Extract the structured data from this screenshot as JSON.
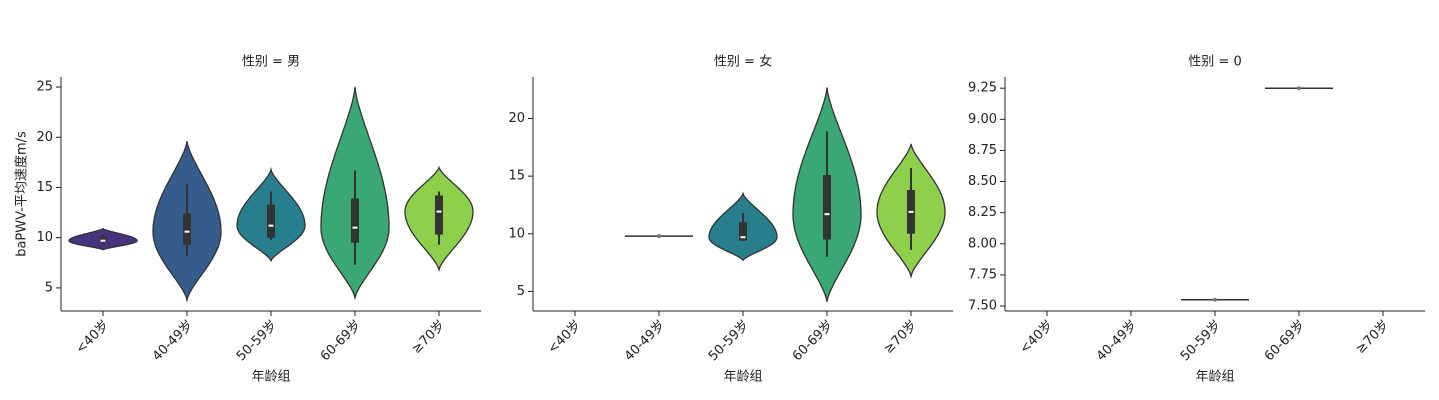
{
  "chart_data": [
    {
      "type": "violin",
      "title": "性别 = 男",
      "x_label": "年龄组",
      "y_label": "baPWV-平均速度m/s",
      "categories": [
        "<40岁",
        "40-49岁",
        "50-59岁",
        "60-69岁",
        "≥70岁"
      ],
      "colors": [
        "#46327e",
        "#365c8d",
        "#277f8e",
        "#3aa874",
        "#8ecf4c"
      ],
      "ylim": [
        2.7,
        26
      ],
      "yticks": [
        5,
        10,
        15,
        20,
        25
      ],
      "stats": [
        {
          "min": 8.8,
          "q1": 9.6,
          "median": 9.7,
          "q3": 10.1,
          "max": 10.9,
          "lo": 9.4,
          "hi": 10.3
        },
        {
          "min": 3.8,
          "q1": 9.3,
          "median": 10.6,
          "q3": 12.4,
          "max": 19.6,
          "lo": 8.2,
          "hi": 15.3
        },
        {
          "min": 7.7,
          "q1": 10.0,
          "median": 11.2,
          "q3": 13.3,
          "max": 16.8,
          "lo": 9.8,
          "hi": 14.6
        },
        {
          "min": 4.0,
          "q1": 9.5,
          "median": 11.0,
          "q3": 13.9,
          "max": 25.0,
          "lo": 7.3,
          "hi": 16.7
        },
        {
          "min": 6.8,
          "q1": 10.3,
          "median": 12.6,
          "q3": 14.2,
          "max": 17.0,
          "lo": 9.3,
          "hi": 14.6
        }
      ]
    },
    {
      "type": "violin",
      "title": "性别 = 女",
      "x_label": "年龄组",
      "categories": [
        "<40岁",
        "40-49岁",
        "50-59岁",
        "60-69岁",
        "≥70岁"
      ],
      "colors": [
        "#46327e",
        "#365c8d",
        "#277f8e",
        "#3aa874",
        "#8ecf4c"
      ],
      "ylim": [
        3.3,
        23.6
      ],
      "yticks": [
        5,
        10,
        15,
        20
      ],
      "stats": [
        null,
        {
          "value": 9.8
        },
        {
          "min": 7.7,
          "q1": 9.4,
          "median": 9.7,
          "q3": 11.0,
          "max": 13.5,
          "lo": 9.4,
          "hi": 11.8
        },
        {
          "min": 4.1,
          "q1": 9.5,
          "median": 11.7,
          "q3": 15.1,
          "max": 22.7,
          "lo": 8.0,
          "hi": 18.9
        },
        {
          "min": 6.3,
          "q1": 10.0,
          "median": 11.9,
          "q3": 13.8,
          "max": 17.8,
          "lo": 8.6,
          "hi": 15.7
        }
      ]
    },
    {
      "type": "violin",
      "title": "性别 = 0",
      "x_label": "年龄组",
      "categories": [
        "<40岁",
        "40-49岁",
        "50-59岁",
        "60-69岁",
        "≥70岁"
      ],
      "colors": [
        "#46327e",
        "#365c8d",
        "#277f8e",
        "#3aa874",
        "#8ecf4c"
      ],
      "ylim": [
        7.46,
        9.34
      ],
      "yticks": [
        {
          "value": 7.5,
          "label": "7.50"
        },
        {
          "value": 7.75,
          "label": "7.75"
        },
        {
          "value": 8.0,
          "label": "8.00"
        },
        {
          "value": 8.25,
          "label": "8.25"
        },
        {
          "value": 8.5,
          "label": "8.50"
        },
        {
          "value": 8.75,
          "label": "8.75"
        },
        {
          "value": 9.0,
          "label": "9.00"
        },
        {
          "value": 9.25,
          "label": "9.25"
        }
      ],
      "stats": [
        null,
        null,
        {
          "value": 7.55
        },
        {
          "value": 9.25
        },
        null
      ]
    }
  ]
}
